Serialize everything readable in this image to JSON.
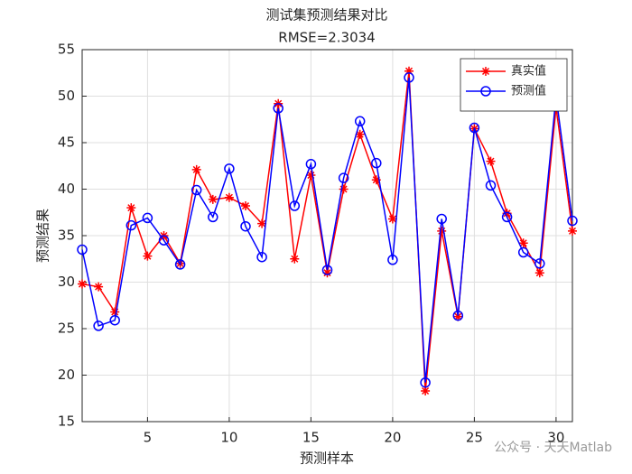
{
  "chart_data": {
    "type": "line",
    "title": "测试集预测结果对比",
    "subtitle": "RMSE=2.3034",
    "x_label": "预测样本",
    "y_label": "预测结果",
    "x": [
      1,
      2,
      3,
      4,
      5,
      6,
      7,
      8,
      9,
      10,
      11,
      12,
      13,
      14,
      15,
      16,
      17,
      18,
      19,
      20,
      21,
      22,
      23,
      24,
      25,
      26,
      27,
      28,
      29,
      30,
      31
    ],
    "series": [
      {
        "name": "真实值",
        "color": "#ff0000",
        "marker": "star",
        "values": [
          29.8,
          29.5,
          26.8,
          38.0,
          32.8,
          35.0,
          32.0,
          42.1,
          38.9,
          39.1,
          38.2,
          36.3,
          49.2,
          32.5,
          41.5,
          31.0,
          40.0,
          45.9,
          41.0,
          36.8,
          52.7,
          18.3,
          35.5,
          26.3,
          46.5,
          43.0,
          37.4,
          34.2,
          31.0,
          48.8,
          35.5
        ]
      },
      {
        "name": "预测值",
        "color": "#0000ff",
        "marker": "circle",
        "values": [
          33.5,
          25.3,
          25.9,
          36.1,
          36.9,
          34.5,
          31.9,
          39.9,
          37.0,
          42.2,
          36.0,
          32.7,
          48.7,
          38.2,
          42.7,
          31.3,
          41.2,
          47.3,
          42.8,
          32.4,
          52.0,
          19.2,
          36.8,
          26.4,
          46.6,
          40.4,
          37.0,
          33.2,
          32.0,
          50.0,
          36.6
        ]
      }
    ],
    "xlim": [
      1,
      31
    ],
    "xticks": [
      5,
      10,
      15,
      20,
      25,
      30
    ],
    "ylim": [
      15,
      55
    ],
    "yticks": [
      15,
      20,
      25,
      30,
      35,
      40,
      45,
      50,
      55
    ],
    "grid": true,
    "legend": "top-right",
    "watermark": "公众号 · 天天Matlab"
  }
}
